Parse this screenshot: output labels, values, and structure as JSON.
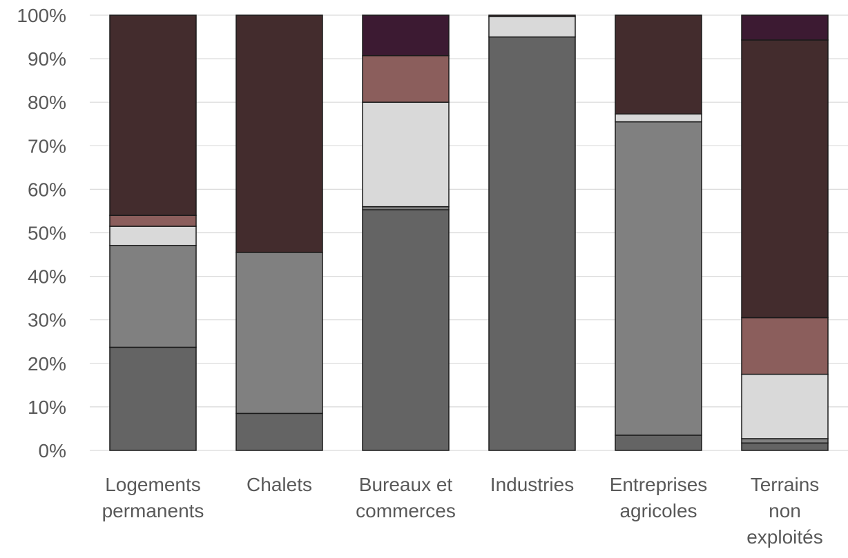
{
  "chart_data": {
    "type": "bar",
    "stacked": true,
    "percent": true,
    "categories": [
      [
        "Logements",
        "permanents"
      ],
      [
        "Chalets"
      ],
      [
        "Bureaux et",
        "commerces"
      ],
      [
        "Industries"
      ],
      [
        "Entreprises",
        "agricoles"
      ],
      [
        "Terrains",
        "non",
        "exploités"
      ]
    ],
    "series": [
      {
        "color": "#646464",
        "values": [
          23.7,
          8.5,
          55.3,
          95.0,
          3.5,
          1.7
        ]
      },
      {
        "color": "#808080",
        "values": [
          23.4,
          37.0,
          0.7,
          0.0,
          72.0,
          1.0
        ]
      },
      {
        "color": "#d9d9d9",
        "values": [
          4.4,
          0.0,
          24.0,
          4.7,
          1.8,
          14.8
        ]
      },
      {
        "color": "#8b5e5c",
        "values": [
          2.5,
          0.0,
          10.7,
          0.0,
          0.0,
          13.0
        ]
      },
      {
        "color": "#432c2d",
        "values": [
          46.0,
          54.5,
          0.0,
          0.3,
          22.7,
          63.8
        ]
      },
      {
        "color": "#3c1a32",
        "values": [
          0.0,
          0.0,
          9.3,
          0.0,
          0.0,
          5.7
        ]
      }
    ],
    "y_ticks": [
      "0%",
      "10%",
      "20%",
      "30%",
      "40%",
      "50%",
      "60%",
      "70%",
      "80%",
      "90%",
      "100%"
    ],
    "ylim": [
      0,
      100
    ],
    "grid": true,
    "legend": "none"
  }
}
